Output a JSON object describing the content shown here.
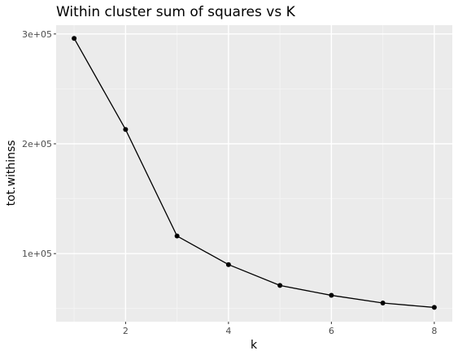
{
  "chart_data": {
    "type": "line",
    "title": "Within cluster sum of squares vs K",
    "xlabel": "k",
    "ylabel": "tot.withinss",
    "x": [
      1,
      2,
      3,
      4,
      5,
      6,
      7,
      8
    ],
    "series": [
      {
        "values": [
          296000,
          213000,
          116000,
          90000,
          71000,
          62000,
          55000,
          51000
        ],
        "show_points": true
      }
    ],
    "xlim": [
      0.65,
      8.35
    ],
    "ylim": [
      38000,
      308000
    ],
    "x_ticks": [
      2,
      4,
      6,
      8
    ],
    "x_tick_labels": [
      "2",
      "4",
      "6",
      "8"
    ],
    "x_minor_ticks": [
      1,
      3,
      5,
      7
    ],
    "y_ticks": [
      100000,
      200000,
      300000
    ],
    "y_tick_labels": [
      "1e+05",
      "2e+05",
      "3e+05"
    ],
    "y_minor_ticks": [
      50000,
      150000,
      250000
    ],
    "grid": true,
    "legend": "none",
    "colors": {
      "panel_background": "#ebebeb",
      "grid_major": "#ffffff",
      "grid_minor": "#f5f5f5",
      "line": "#000000",
      "point": "#000000",
      "tick_label": "#4d4d4d",
      "tick_mark": "#333333"
    }
  }
}
